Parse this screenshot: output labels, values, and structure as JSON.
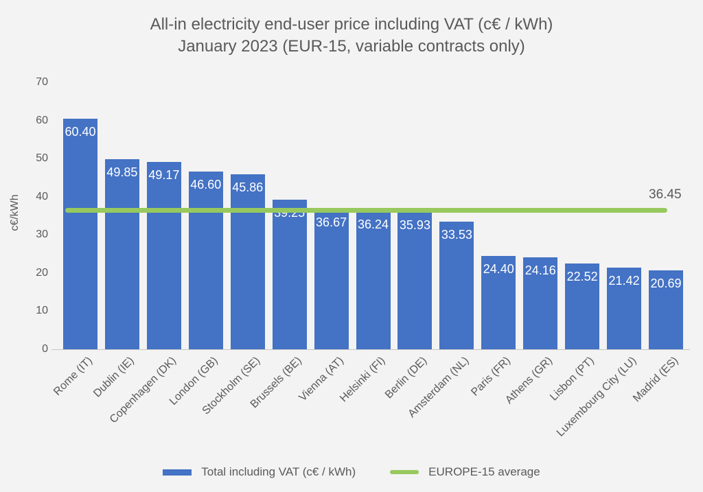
{
  "title": {
    "line1": "All-in electricity end-user price including VAT (c€ / kWh)",
    "line2": "January 2023 (EUR-15, variable contracts only)"
  },
  "y_axis": {
    "title": "c€/kWh",
    "ticks": [
      "0",
      "10",
      "20",
      "30",
      "40",
      "50",
      "60",
      "70"
    ]
  },
  "legend": {
    "bars_label": "Total including VAT (c€ / kWh)",
    "line_label": "EUROPE-15 average"
  },
  "average_line": {
    "value": 36.45,
    "label": "36.45"
  },
  "colors": {
    "bar": "#4472c4",
    "average_line": "#97c95e",
    "text": "#595959",
    "value_label": "#ffffff",
    "background": "#f3f3f3",
    "axis_line": "#c6c6c6"
  },
  "chart_data": {
    "type": "bar",
    "title": "All-in electricity end-user price including VAT (c€ / kWh) January 2023 (EUR-15, variable contracts only)",
    "categories": [
      "Rome (IT)",
      "Dublin (IE)",
      "Copenhagen (DK)",
      "London (GB)",
      "Stockholm (SE)",
      "Brussels (BE)",
      "Vienna (AT)",
      "Helsinki (FI)",
      "Berlin (DE)",
      "Amsterdam (NL)",
      "Paris (FR)",
      "Athens (GR)",
      "Lisbon (PT)",
      "Luxembourg City (LU)",
      "Madrid (ES)"
    ],
    "series": [
      {
        "name": "Total including VAT (c€ / kWh)",
        "values": [
          60.4,
          49.85,
          49.17,
          46.6,
          45.86,
          39.25,
          36.67,
          36.24,
          35.93,
          33.53,
          24.4,
          24.16,
          22.52,
          21.42,
          20.69
        ],
        "value_labels": [
          "60.40",
          "49.85",
          "49.17",
          "46.60",
          "45.86",
          "39.25",
          "36.67",
          "36.24",
          "35.93",
          "33.53",
          "24.40",
          "24.16",
          "22.52",
          "21.42",
          "20.69"
        ]
      }
    ],
    "reference_line": {
      "name": "EUROPE-15 average",
      "value": 36.45,
      "label": "36.45"
    },
    "xlabel": "",
    "ylabel": "c€/kWh",
    "ylim": [
      0,
      70
    ],
    "grid": false,
    "legend_position": "bottom"
  }
}
